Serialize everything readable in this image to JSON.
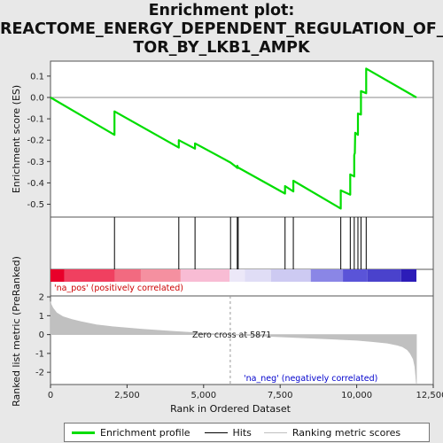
{
  "chart_data": {
    "type": "line",
    "title_lines": [
      "Enrichment plot:",
      "REACTOME_ENERGY_DEPENDENT_REGULATION_OF_M",
      "TOR_BY_LKB1_AMPK"
    ],
    "top_panel": {
      "ylabel": "Enrichment score (ES)",
      "ylim": [
        -0.56,
        0.17
      ],
      "yticks": [
        0.1,
        0.0,
        -0.1,
        -0.2,
        -0.3,
        -0.4,
        -0.5
      ],
      "ytick_labels": [
        "0.1",
        "0.0",
        "-0.1",
        "-0.2",
        "-0.3",
        "-0.4",
        "-0.5"
      ],
      "series": {
        "name": "Enrichment profile",
        "color": "#00dd00",
        "x": [
          0,
          2090,
          2090,
          4190,
          4190,
          4720,
          4720,
          5880,
          6060,
          6100,
          6100,
          6130,
          6150,
          7660,
          7660,
          7930,
          7930,
          9480,
          9480,
          9790,
          9790,
          9920,
          9920,
          9940,
          9950,
          10040,
          10040,
          10140,
          10140,
          10310,
          10310,
          11950
        ],
        "y": [
          0.0,
          -0.175,
          -0.065,
          -0.235,
          -0.2,
          -0.24,
          -0.215,
          -0.305,
          -0.325,
          -0.33,
          -0.32,
          -0.33,
          -0.33,
          -0.45,
          -0.415,
          -0.44,
          -0.39,
          -0.52,
          -0.435,
          -0.455,
          -0.36,
          -0.37,
          -0.27,
          -0.26,
          -0.165,
          -0.175,
          -0.075,
          -0.08,
          0.03,
          0.02,
          0.135,
          0.0
        ]
      }
    },
    "hits": [
      2090,
      4190,
      4720,
      5880,
      6100,
      6130,
      7660,
      7930,
      9480,
      9790,
      9920,
      10040,
      10140,
      10310
    ],
    "heatmap_bar": {
      "segments": [
        {
          "from": 0,
          "to": 450,
          "color": "#e8002a"
        },
        {
          "from": 450,
          "to": 2100,
          "color": "#f04060"
        },
        {
          "from": 2100,
          "to": 2950,
          "color": "#f26a80"
        },
        {
          "from": 2950,
          "to": 4250,
          "color": "#f590a0"
        },
        {
          "from": 4250,
          "to": 5850,
          "color": "#f8bcd4"
        },
        {
          "from": 5850,
          "to": 6350,
          "color": "#ece8f8"
        },
        {
          "from": 6350,
          "to": 7200,
          "color": "#e0ddf6"
        },
        {
          "from": 7200,
          "to": 8500,
          "color": "#cdcaf2"
        },
        {
          "from": 8500,
          "to": 9550,
          "color": "#8a86e6"
        },
        {
          "from": 9550,
          "to": 10350,
          "color": "#5a54d8"
        },
        {
          "from": 10350,
          "to": 11450,
          "color": "#4a42cc"
        },
        {
          "from": 11450,
          "to": 11950,
          "color": "#2c1cb8"
        }
      ],
      "pos_label": "'na_pos' (positively correlated)",
      "neg_label": "'na_neg' (negatively correlated)",
      "pos_color": "#cc0000",
      "neg_color": "#0000cc"
    },
    "bottom_panel": {
      "ylabel": "Ranked list metric (PreRanked)",
      "ylim": [
        -2.65,
        2.05
      ],
      "yticks": [
        2,
        1,
        0,
        -1,
        -2
      ],
      "ytick_labels": [
        "2",
        "1",
        "0",
        "-1",
        "-2"
      ],
      "zero_cross_label": "Zero cross at 5871",
      "zero_cross": 5871,
      "metric_profile": {
        "x": [
          0,
          20,
          80,
          200,
          400,
          700,
          1000,
          1500,
          2000,
          3000,
          4000,
          5000,
          5871,
          7000,
          8000,
          9000,
          10000,
          10500,
          11000,
          11300,
          11500,
          11650,
          11750,
          11850,
          11900,
          11930,
          11950
        ],
        "y": [
          1.75,
          1.6,
          1.4,
          1.15,
          0.95,
          0.8,
          0.68,
          0.52,
          0.42,
          0.28,
          0.17,
          0.07,
          0.0,
          -0.08,
          -0.15,
          -0.22,
          -0.3,
          -0.37,
          -0.45,
          -0.55,
          -0.65,
          -0.8,
          -1.0,
          -1.3,
          -1.7,
          -2.2,
          -2.6
        ]
      },
      "color": "#c0c0c0"
    },
    "x_axis": {
      "xlabel": "Rank in Ordered Dataset",
      "xlim": [
        0,
        12500
      ],
      "xticks": [
        0,
        2500,
        5000,
        7500,
        10000,
        12500
      ],
      "xtick_labels": [
        "0",
        "2,500",
        "5,000",
        "7,500",
        "10,000",
        "12,500"
      ]
    },
    "legend": {
      "items": [
        {
          "label": "Enrichment profile",
          "color": "#00dd00"
        },
        {
          "label": "Hits",
          "color": "#000000"
        },
        {
          "label": "Ranking metric scores",
          "color": "#c0c0c0"
        }
      ]
    }
  }
}
